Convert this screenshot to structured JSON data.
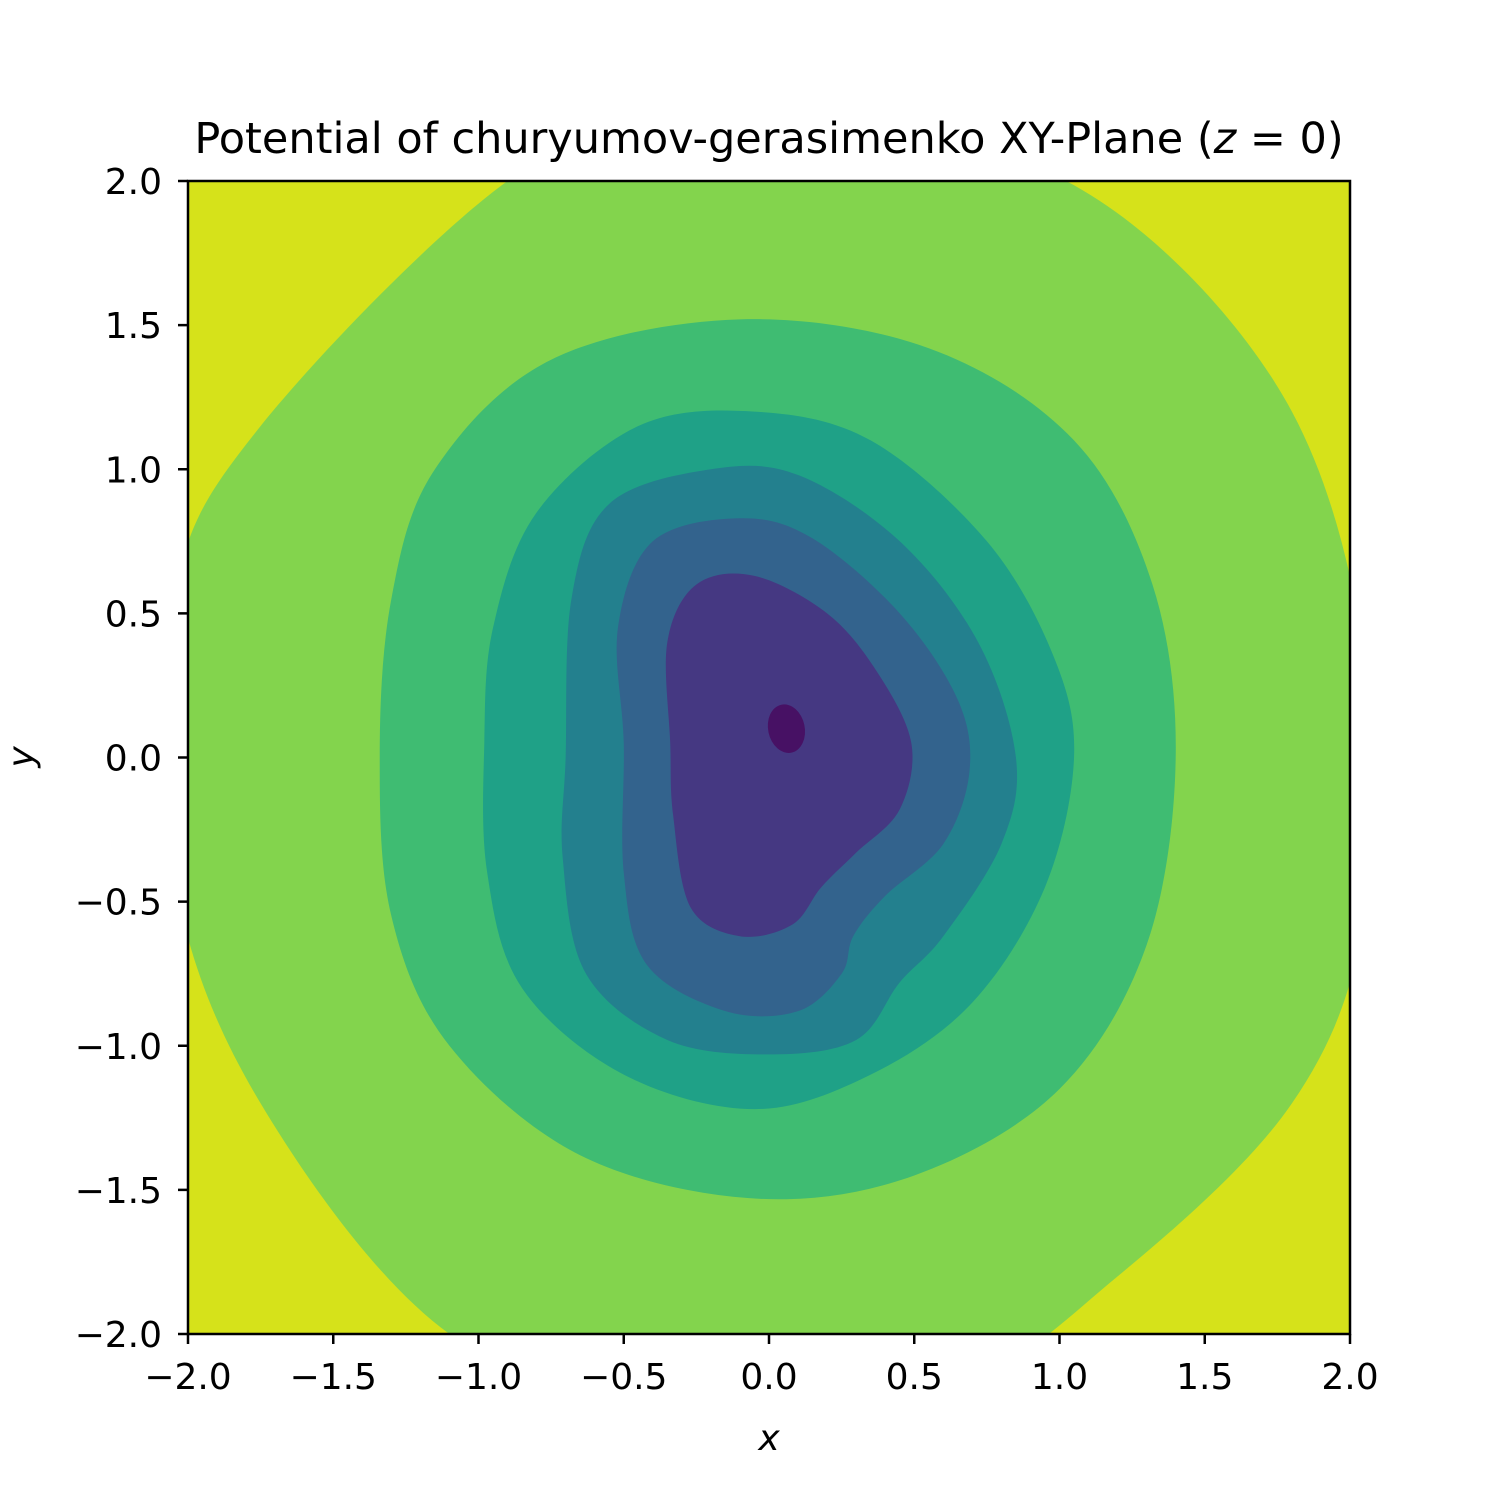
{
  "chart_data": {
    "type": "contour",
    "title": {
      "prefix": "Potential of churyumov-gerasimenko XY-Plane (",
      "math_var": "z",
      "math_rest": " = 0)"
    },
    "xlabel": "x",
    "ylabel": "y",
    "xlim": [
      -2.0,
      2.0
    ],
    "ylim": [
      -2.0,
      2.0
    ],
    "x_ticks": [
      -2.0,
      -1.5,
      -1.0,
      -0.5,
      0.0,
      0.5,
      1.0,
      1.5,
      2.0
    ],
    "y_ticks": [
      -2.0,
      -1.5,
      -1.0,
      -0.5,
      0.0,
      0.5,
      1.0,
      1.5,
      2.0
    ],
    "x_tick_labels": [
      "−2.0",
      "−1.5",
      "−1.0",
      "−0.5",
      "0.0",
      "0.5",
      "1.0",
      "1.5",
      "2.0"
    ],
    "y_tick_labels": [
      "−2.0",
      "−1.5",
      "−1.0",
      "−0.5",
      "0.0",
      "0.5",
      "1.0",
      "1.5",
      "2.0"
    ],
    "grid": false,
    "colormap": "viridis",
    "background_color": "#d6e21a",
    "levels": [
      {
        "name": "level-1",
        "color": "#83d44d",
        "boundary": [
          [
            -0.9,
            2.0
          ],
          [
            -0.3,
            2.2
          ],
          [
            0.6,
            2.15
          ],
          [
            1.25,
            1.85
          ],
          [
            1.8,
            1.2
          ],
          [
            2.05,
            0.35
          ],
          [
            2.05,
            -0.55
          ],
          [
            1.8,
            -1.2
          ],
          [
            1.2,
            -1.8
          ],
          [
            0.6,
            -2.2
          ],
          [
            -0.3,
            -2.25
          ],
          [
            -1.1,
            -2.0
          ],
          [
            -1.75,
            -1.2
          ],
          [
            -2.05,
            -0.4
          ],
          [
            -2.05,
            0.55
          ],
          [
            -1.75,
            1.15
          ]
        ]
      },
      {
        "name": "level-2",
        "color": "#3fbc72",
        "boundary": [
          [
            -1.3,
            0.55
          ],
          [
            -1.15,
            1.0
          ],
          [
            -0.75,
            1.38
          ],
          [
            -0.1,
            1.52
          ],
          [
            0.55,
            1.42
          ],
          [
            1.05,
            1.1
          ],
          [
            1.32,
            0.6
          ],
          [
            1.4,
            0.0
          ],
          [
            1.3,
            -0.65
          ],
          [
            1.0,
            -1.15
          ],
          [
            0.5,
            -1.45
          ],
          [
            -0.05,
            -1.53
          ],
          [
            -0.65,
            -1.38
          ],
          [
            -1.1,
            -1.0
          ],
          [
            -1.3,
            -0.55
          ],
          [
            -1.34,
            0.0
          ]
        ]
      },
      {
        "name": "level-3",
        "color": "#1fa187",
        "boundary": [
          [
            -0.95,
            0.45
          ],
          [
            -0.8,
            0.85
          ],
          [
            -0.45,
            1.15
          ],
          [
            -0.05,
            1.2
          ],
          [
            0.35,
            1.1
          ],
          [
            0.75,
            0.75
          ],
          [
            0.98,
            0.35
          ],
          [
            1.05,
            0.0
          ],
          [
            0.95,
            -0.45
          ],
          [
            0.7,
            -0.85
          ],
          [
            0.35,
            -1.1
          ],
          [
            -0.05,
            -1.22
          ],
          [
            -0.5,
            -1.1
          ],
          [
            -0.85,
            -0.8
          ],
          [
            -0.97,
            -0.4
          ],
          [
            -0.98,
            0.05
          ]
        ]
      },
      {
        "name": "level-4",
        "color": "#23808e",
        "boundary": [
          [
            -0.68,
            0.55
          ],
          [
            -0.55,
            0.88
          ],
          [
            -0.2,
            1.0
          ],
          [
            0.1,
            0.98
          ],
          [
            0.45,
            0.75
          ],
          [
            0.72,
            0.4
          ],
          [
            0.85,
            0.0
          ],
          [
            0.8,
            -0.3
          ],
          [
            0.6,
            -0.62
          ],
          [
            0.45,
            -0.78
          ],
          [
            0.3,
            -0.98
          ],
          [
            0.0,
            -1.03
          ],
          [
            -0.35,
            -0.98
          ],
          [
            -0.63,
            -0.75
          ],
          [
            -0.71,
            -0.35
          ],
          [
            -0.7,
            0.0
          ]
        ]
      },
      {
        "name": "level-5",
        "color": "#33638d",
        "boundary": [
          [
            -0.52,
            0.45
          ],
          [
            -0.4,
            0.75
          ],
          [
            -0.1,
            0.83
          ],
          [
            0.15,
            0.76
          ],
          [
            0.45,
            0.5
          ],
          [
            0.65,
            0.2
          ],
          [
            0.69,
            -0.05
          ],
          [
            0.6,
            -0.3
          ],
          [
            0.4,
            -0.48
          ],
          [
            0.29,
            -0.62
          ],
          [
            0.25,
            -0.75
          ],
          [
            0.1,
            -0.88
          ],
          [
            -0.15,
            -0.88
          ],
          [
            -0.42,
            -0.72
          ],
          [
            -0.5,
            -0.4
          ],
          [
            -0.5,
            0.05
          ]
        ]
      },
      {
        "name": "level-6",
        "color": "#453882",
        "boundary": [
          [
            -0.35,
            0.4
          ],
          [
            -0.25,
            0.6
          ],
          [
            -0.05,
            0.63
          ],
          [
            0.2,
            0.5
          ],
          [
            0.37,
            0.3
          ],
          [
            0.49,
            0.05
          ],
          [
            0.45,
            -0.18
          ],
          [
            0.3,
            -0.33
          ],
          [
            0.18,
            -0.45
          ],
          [
            0.08,
            -0.58
          ],
          [
            -0.1,
            -0.62
          ],
          [
            -0.27,
            -0.52
          ],
          [
            -0.33,
            -0.2
          ],
          [
            -0.34,
            0.05
          ]
        ]
      },
      {
        "name": "level-7",
        "color": "#471164",
        "center": [
          0.06,
          0.1
        ],
        "radius_x": 0.063,
        "radius_y": 0.085,
        "rotation": -12
      }
    ]
  }
}
